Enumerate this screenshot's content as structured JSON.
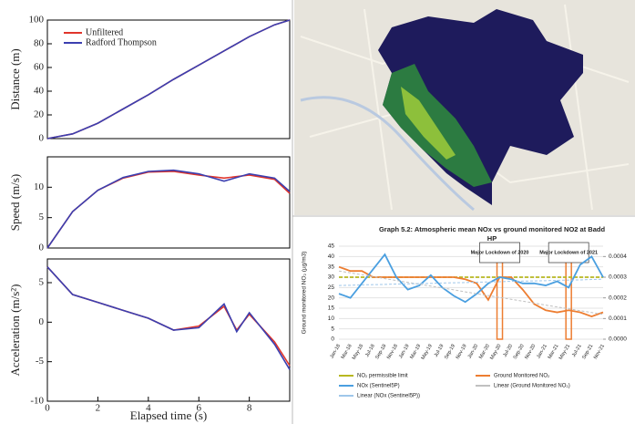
{
  "chart_data": [
    {
      "type": "line",
      "ylabel": "Distance (m)",
      "x": [
        0,
        1,
        2,
        3,
        4,
        5,
        6,
        7,
        8,
        9,
        9.6
      ],
      "xlim": [
        0,
        9.6
      ],
      "ylim": [
        0,
        100
      ],
      "yticks": [
        0,
        20,
        40,
        60,
        80,
        100
      ],
      "series": [
        {
          "name": "Unfiltered",
          "color": "#e0352b",
          "values": [
            0,
            4,
            13,
            25,
            37,
            50,
            62,
            74,
            86,
            96,
            100
          ]
        },
        {
          "name": "Radford Thompson",
          "color": "#3b3fb0",
          "values": [
            0,
            4,
            13,
            25,
            37,
            50,
            62,
            74,
            86,
            96,
            100
          ]
        }
      ]
    },
    {
      "type": "line",
      "ylabel": "Speed (m/s)",
      "x": [
        0,
        1,
        2,
        3,
        4,
        5,
        6,
        7,
        8,
        9,
        9.6
      ],
      "xlim": [
        0,
        9.6
      ],
      "ylim": [
        0,
        15
      ],
      "yticks": [
        0,
        5,
        10
      ],
      "series": [
        {
          "color": "#e0352b",
          "values": [
            0,
            6,
            9.5,
            11.5,
            12.5,
            12.6,
            12,
            11.5,
            12,
            11.3,
            9
          ]
        },
        {
          "color": "#3b3fb0",
          "values": [
            0,
            6,
            9.5,
            11.6,
            12.6,
            12.8,
            12.2,
            11,
            12.2,
            11.5,
            9.3
          ]
        }
      ]
    },
    {
      "type": "line",
      "ylabel": "Acceleration (m/s²)",
      "xlabel": "Elapsed time (s)",
      "x": [
        0,
        1,
        2,
        3,
        4,
        5,
        6,
        7,
        7.5,
        8,
        9,
        9.6
      ],
      "xlim": [
        0,
        9.6
      ],
      "xticks": [
        0,
        2,
        4,
        6,
        8
      ],
      "ylim": [
        -10,
        8
      ],
      "yticks": [
        -10,
        -5,
        0,
        5
      ],
      "series": [
        {
          "color": "#e0352b",
          "values": [
            7,
            3.5,
            2.5,
            1.5,
            0.5,
            -1,
            -0.5,
            2,
            -1,
            1,
            -2.5,
            -5.5
          ]
        },
        {
          "color": "#3b3fb0",
          "values": [
            7,
            3.5,
            2.5,
            1.5,
            0.5,
            -1,
            -0.7,
            2.3,
            -1.2,
            1.2,
            -2.8,
            -6
          ]
        }
      ]
    },
    {
      "type": "category-line",
      "title": "Graph 5.2: Atmospheric mean NOx vs ground monitored NO2 at Badd",
      "subtitle": "HP",
      "ylabel": "Ground monitored NO₂ (µg/m3)",
      "categories": [
        "Jan-18",
        "Mar-18",
        "May-18",
        "Jul-18",
        "Sep-18",
        "Nov-18",
        "Jan-19",
        "Mar-19",
        "May-19",
        "Jul-19",
        "Sep-19",
        "Nov-19",
        "Jan-20",
        "Mar-20",
        "May-20",
        "Jul-20",
        "Sep-20",
        "Nov-20",
        "Jan-21",
        "Mar-21",
        "May-21",
        "Jul-21",
        "Sep-21",
        "Nov-21"
      ],
      "ylim": [
        0,
        45
      ],
      "yticks": [
        0,
        5,
        10,
        15,
        20,
        25,
        30,
        35,
        40,
        45
      ],
      "y2lim": [
        0,
        0.00045
      ],
      "y2ticks": [
        {
          "value": 0,
          "label": "0.0000"
        },
        {
          "value": 0.0001,
          "label": "0.0001"
        },
        {
          "value": 0.0002,
          "label": "0.0002"
        },
        {
          "value": 0.0003,
          "label": "0.0003"
        },
        {
          "value": 0.0004,
          "label": "0.0004"
        }
      ],
      "annotations": [
        "Major Lockdown of 2020",
        "Major Lockdown of 2021"
      ],
      "series": [
        {
          "name": "NO₂ permissible limit",
          "color": "#b8b820",
          "values": [
            30,
            30,
            30,
            30,
            30,
            30,
            30,
            30,
            30,
            30,
            30,
            30,
            30,
            30,
            30,
            30,
            30,
            30,
            30,
            30,
            30,
            30,
            30,
            30
          ]
        },
        {
          "name": "Ground Monitored NO₂",
          "color": "#ed7d31",
          "values": [
            35,
            33,
            33,
            30,
            30,
            30,
            30,
            30,
            30,
            30,
            30,
            29,
            27,
            19,
            30,
            30,
            24,
            17,
            14,
            13,
            14,
            13,
            11,
            13
          ]
        },
        {
          "name": "NOx (Sentinel5P)",
          "color": "#4a9fe0",
          "axis": "y2",
          "values": [
            0.00022,
            0.0002,
            0.00027,
            0.00034,
            0.00041,
            0.0003,
            0.00024,
            0.00026,
            0.00031,
            0.00025,
            0.00021,
            0.00018,
            0.00022,
            0.00027,
            0.0003,
            0.00029,
            0.00027,
            0.00027,
            0.00026,
            0.00028,
            0.00025,
            0.00036,
            0.0004,
            0.0003
          ]
        },
        {
          "name": "Linear (Ground Monitored NO₂)",
          "color": "#c0c0c0",
          "values": [
            33,
            32.1,
            31.2,
            30.3,
            29.3,
            28.4,
            27.5,
            26.6,
            25.7,
            24.8,
            23.9,
            22.9,
            22,
            21.1,
            20.2,
            19.3,
            18.4,
            17.5,
            16.5,
            15.6,
            14.7,
            13.8,
            12.9,
            12
          ]
        },
        {
          "name": "Linear (NOx (Sentinel5P))",
          "color": "#9fc7ea",
          "axis": "y2",
          "values": [
            0.00026,
            0.000261,
            0.000263,
            0.000264,
            0.000265,
            0.000267,
            0.000268,
            0.000269,
            0.00027,
            0.000272,
            0.000273,
            0.000274,
            0.000276,
            0.000277,
            0.000278,
            0.00028,
            0.000281,
            0.000282,
            0.000283,
            0.000285,
            0.000286,
            0.000287,
            0.000289,
            0.00029
          ]
        }
      ]
    }
  ]
}
